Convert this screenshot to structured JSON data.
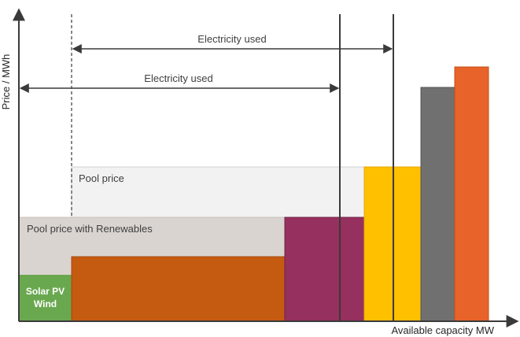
{
  "axes": {
    "y_label": "Price / MWh",
    "x_label": "Available capacity MW"
  },
  "electricity_used_upper": "Electricity used",
  "electricity_used_lower": "Electricity used",
  "pool_price": "Pool price",
  "pool_price_renewables": "Pool price with Renewables",
  "renewables_block": {
    "line1": "Solar PV",
    "line2": "Wind"
  },
  "colors": {
    "axis": "#3a3a3a",
    "renewables": "#6aa84f",
    "orange_brown": "#c55a11",
    "magenta": "#96305e",
    "yellow": "#ffc000",
    "gray": "#707070",
    "orange": "#e8632a",
    "pool_price_bg": "#f2f2f2",
    "pool_renewables_bg": "#d9d4d0"
  }
}
